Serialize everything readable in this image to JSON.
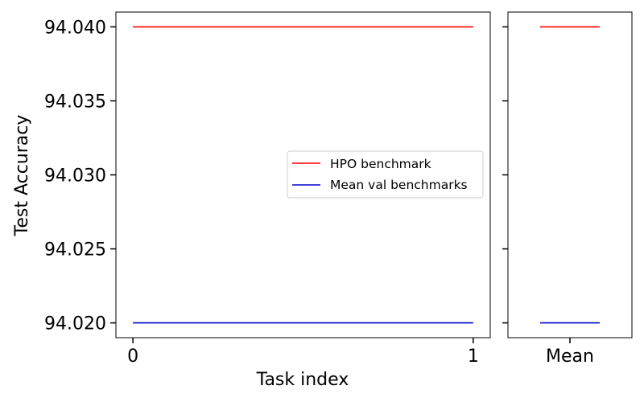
{
  "chart_data": [
    {
      "type": "line",
      "panel": "main",
      "xlabel": "Task index",
      "ylabel": "Test Accuracy",
      "xlim": [
        -0.05,
        1.05
      ],
      "ylim": [
        94.019,
        94.041
      ],
      "x_ticks": [
        0,
        1
      ],
      "x_tick_labels": [
        "0",
        "1"
      ],
      "y_ticks": [
        94.02,
        94.025,
        94.03,
        94.035,
        94.04
      ],
      "y_tick_labels": [
        "94.020",
        "94.025",
        "94.030",
        "94.035",
        "94.040"
      ],
      "grid": false,
      "legend": "center-right",
      "series": [
        {
          "name": "HPO benchmark",
          "color": "#ff0000",
          "x": [
            0,
            1
          ],
          "y": [
            94.04,
            94.04
          ]
        },
        {
          "name": "Mean val benchmarks",
          "color": "#0000cc",
          "x": [
            0,
            1
          ],
          "y": [
            94.02,
            94.02
          ]
        }
      ]
    },
    {
      "type": "line",
      "panel": "mean",
      "x_tick_labels": [
        "Mean"
      ],
      "ylim": [
        94.019,
        94.041
      ],
      "y_ticks": [
        94.02,
        94.025,
        94.03,
        94.035,
        94.04
      ],
      "shared_y": true,
      "grid": false,
      "series": [
        {
          "color": "#ff0000",
          "y": 94.04
        },
        {
          "color": "#0000cc",
          "y": 94.02
        }
      ]
    }
  ]
}
